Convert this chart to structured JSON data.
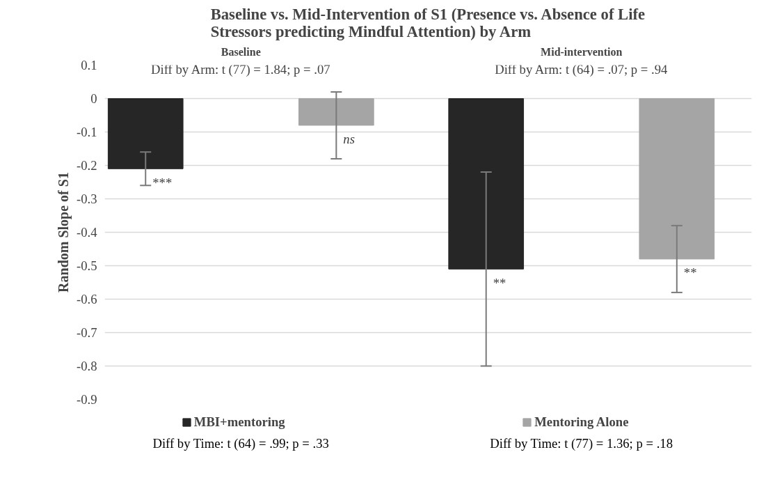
{
  "chart_data": {
    "type": "bar",
    "title": "Baseline vs. Mid-Intervention of S1 (Presence vs. Absence of Life\nStressors predicting Mindful Attention) by Arm",
    "ylabel": "Random Slope of S1",
    "categories": [
      "Baseline",
      "Mid-intervention"
    ],
    "series": [
      {
        "name": "MBI+mentoring",
        "color": "#262626",
        "values": [
          -0.21,
          -0.51
        ],
        "errors": [
          [
            -0.26,
            -0.16
          ],
          [
            -0.8,
            -0.22
          ]
        ]
      },
      {
        "name": "Mentoring Alone",
        "color": "#a5a5a5",
        "values": [
          -0.08,
          -0.48
        ],
        "errors": [
          [
            -0.18,
            0.02
          ],
          [
            -0.58,
            -0.38
          ]
        ]
      }
    ],
    "ylim": [
      -0.9,
      0.1
    ],
    "yticks": [
      {
        "value": 0.1,
        "label": "0.1"
      },
      0,
      {
        "value": -0.1,
        "label": "-0.1"
      },
      {
        "value": -0.2,
        "label": "-0.2"
      },
      {
        "value": -0.3,
        "label": "-0.3"
      },
      {
        "value": -0.4,
        "label": "-0.4"
      },
      {
        "value": -0.5,
        "label": "-0.5"
      },
      {
        "value": -0.6,
        "label": "-0.6"
      },
      {
        "value": -0.7,
        "label": "-0.7"
      },
      {
        "value": -0.8,
        "label": "-0.8"
      },
      {
        "value": -0.9,
        "label": "-0.9"
      }
    ],
    "grid": "y",
    "legend": "bottom",
    "annotations": [
      "Diff by Arm: t (77) = 1.84; p = .07",
      "Diff by Arm: t (64) = .07; p = .94",
      "Diff by Time: t (64) = .99; p = .33",
      "Diff by Time: t (77) = 1.36; p = .18",
      "***",
      "ns",
      "**",
      "**"
    ]
  }
}
